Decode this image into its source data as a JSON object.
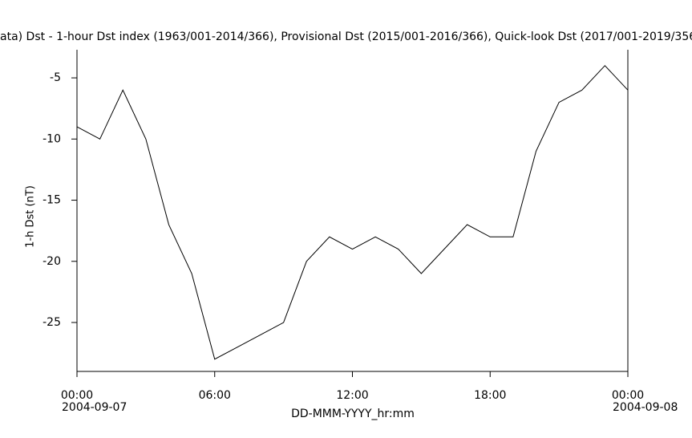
{
  "chart_data": {
    "type": "line",
    "title": "ata)  Dst - 1-hour Dst index (1963/001-2014/366), Provisional Dst (2015/001-2016/366), Quick-look Dst (2017/001-2019/356",
    "x_label": "DD-MMM-YYYY_hr:mm",
    "y_label": "1-h Dst (nT)",
    "x": [
      0,
      1,
      2,
      3,
      4,
      5,
      6,
      7,
      8,
      9,
      10,
      11,
      12,
      13,
      14,
      15,
      16,
      17,
      18,
      19,
      20,
      21,
      22,
      23,
      24
    ],
    "series": [
      {
        "name": "Dst",
        "color": "#000000",
        "values": [
          -9,
          -10,
          -6,
          -10,
          -17,
          -21,
          -28,
          -27,
          -26,
          -25,
          -20,
          -18,
          -19,
          -18,
          -19,
          -21,
          -19,
          -17,
          -18,
          -18,
          -11,
          -7,
          -6,
          -4,
          -6
        ]
      }
    ],
    "xlim": [
      0,
      24
    ],
    "xticks": [
      {
        "value": 0,
        "label": "00:00"
      },
      {
        "value": 6,
        "label": "06:00"
      },
      {
        "value": 12,
        "label": "12:00"
      },
      {
        "value": 18,
        "label": "18:00"
      },
      {
        "value": 24,
        "label": "00:00"
      }
    ],
    "xtick_dates": [
      {
        "value": 0,
        "label": "2004-09-07"
      },
      {
        "value": 24,
        "label": "2004-09-08"
      }
    ],
    "ylim": [
      -29,
      -2.7
    ],
    "yticks": [
      -5,
      -10,
      -15,
      -20,
      -25
    ],
    "grid": false
  }
}
